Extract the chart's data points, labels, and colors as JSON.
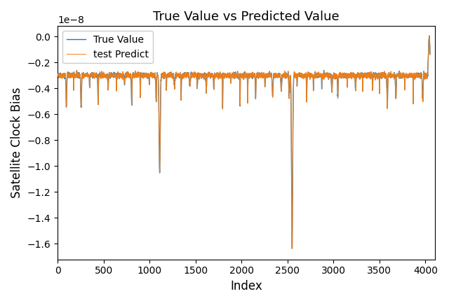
{
  "title": "True Value vs Predicted Value",
  "xlabel": "Index",
  "ylabel": "Satellite Clock Bias",
  "true_label": "True Value",
  "pred_label": "test Predict",
  "true_color": "#1f77b4",
  "pred_color": "#ff7f0e",
  "n_points": 4050,
  "baseline": -3e-09,
  "ylim": [
    -1.72e-08,
    8e-10
  ],
  "xlim": [
    0,
    4100
  ]
}
